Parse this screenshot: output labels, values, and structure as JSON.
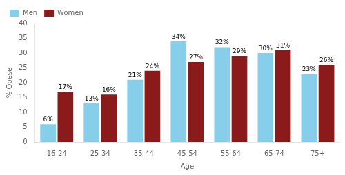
{
  "chart_data": {
    "type": "bar",
    "categories": [
      "16-24",
      "25-34",
      "35-44",
      "45-54",
      "55-64",
      "65-74",
      "75+"
    ],
    "series": [
      {
        "name": "Men",
        "color": "#87CEEB",
        "values": [
          6,
          13,
          21,
          34,
          32,
          30,
          23
        ],
        "value_labels": [
          "6%",
          "13%",
          "21%",
          "34%",
          "32%",
          "30%",
          "23%"
        ]
      },
      {
        "name": "Women",
        "color": "#8B1A1A",
        "values": [
          17,
          16,
          24,
          27,
          29,
          31,
          26
        ],
        "value_labels": [
          "17%",
          "16%",
          "24%",
          "27%",
          "29%",
          "31%",
          "26%"
        ]
      }
    ],
    "xlabel": "Age",
    "ylabel": "% Obese",
    "ylim": [
      0,
      40
    ],
    "yticks": [
      0,
      5,
      10,
      15,
      20,
      25,
      30,
      35,
      40
    ],
    "grid": false,
    "legend": "upper left",
    "data_labels": true
  }
}
